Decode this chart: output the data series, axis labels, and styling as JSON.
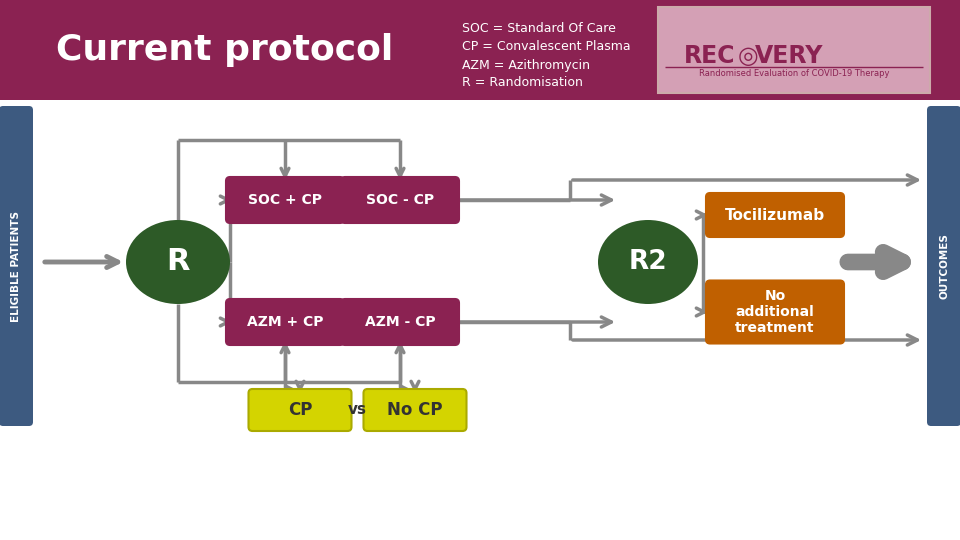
{
  "header_bg": "#8B2252",
  "header_text_color": "#ffffff",
  "title": "Current protocol",
  "abbrev_lines": [
    "SOC = Standard Of Care",
    "CP = Convalescent Plasma",
    "AZM = Azithromycin",
    "R = Randomisation"
  ],
  "sidebar_bg": "#3d5a80",
  "sidebar_text_color": "#ffffff",
  "left_sidebar_label": "ELIGIBLE PATIENTS",
  "right_sidebar_label": "OUTCOMES",
  "dark_green": "#2d5a27",
  "maroon": "#8B2252",
  "orange": "#c06000",
  "yellow": "#d4d400",
  "gray": "#888888",
  "white": "#ffffff",
  "logo_bg": "#d4a0b5",
  "logo_text": "#8B2252"
}
